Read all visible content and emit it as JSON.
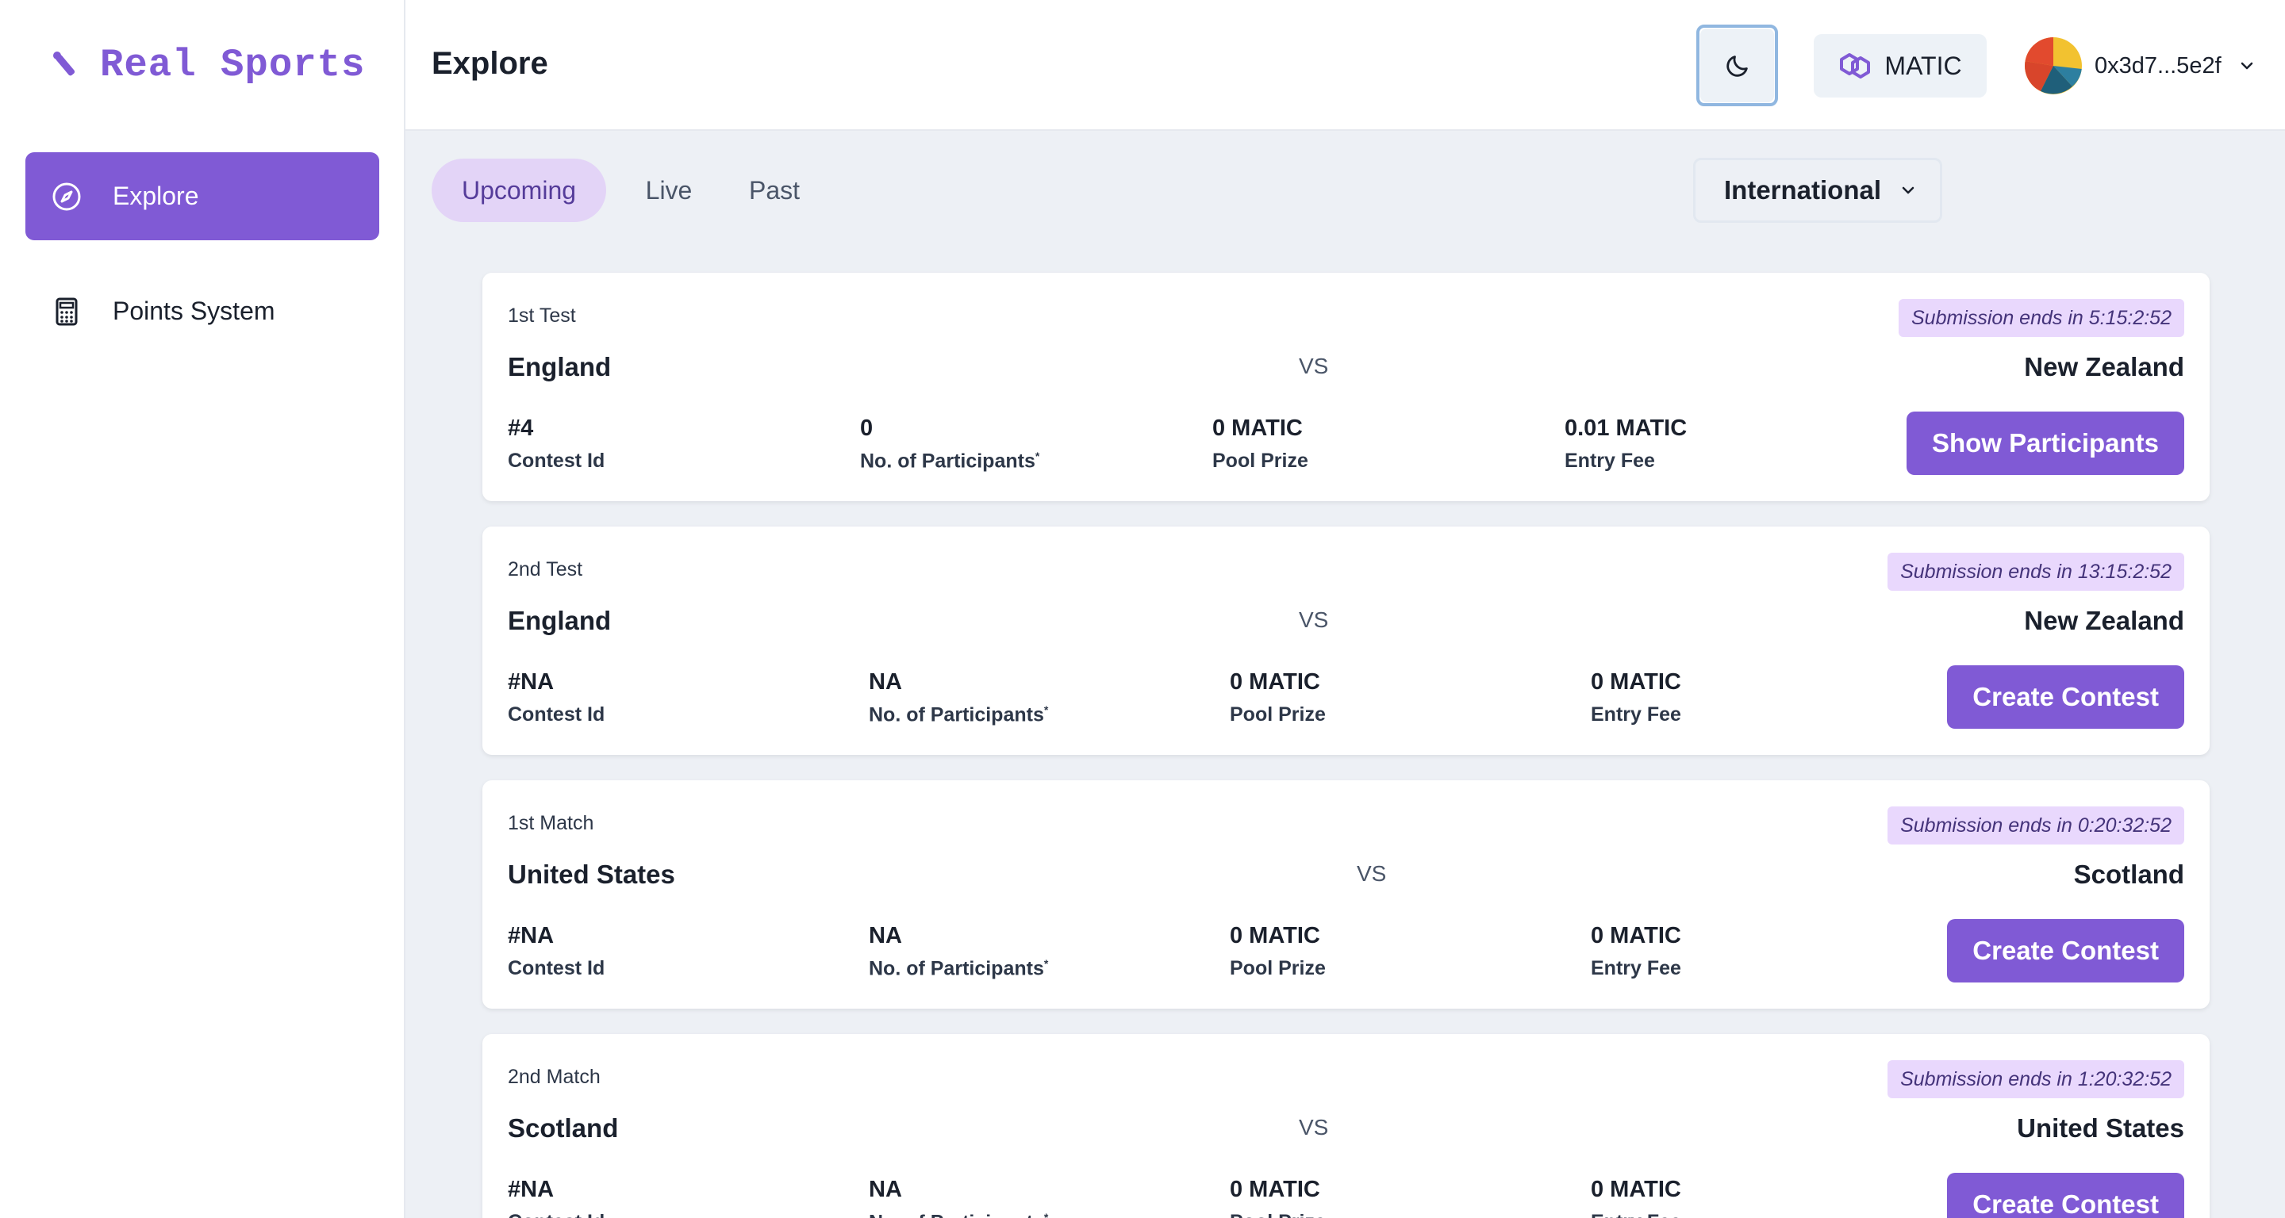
{
  "app": {
    "name": "Real Sports"
  },
  "sidebar": {
    "items": [
      {
        "label": "Explore",
        "icon": "compass-icon",
        "active": true
      },
      {
        "label": "Points System",
        "icon": "calculator-icon",
        "active": false
      }
    ]
  },
  "header": {
    "title": "Explore",
    "theme_icon": "moon-icon",
    "network": {
      "label": "MATIC",
      "icon": "polygon-icon"
    },
    "account": {
      "address": "0x3d7...5e2f",
      "icon": "chevron-down-icon"
    }
  },
  "tabs": [
    {
      "label": "Upcoming",
      "active": true
    },
    {
      "label": "Live",
      "active": false
    },
    {
      "label": "Past",
      "active": false
    }
  ],
  "region": {
    "selected": "International"
  },
  "stat_labels": {
    "contest_id": "Contest Id",
    "participants": "No. of Participants",
    "participants_mark": "*",
    "pool_prize": "Pool Prize",
    "entry_fee": "Entry Fee"
  },
  "vs_label": "VS",
  "contests": [
    {
      "match": "1st Test",
      "submission": "Submission ends in 5:15:2:52",
      "team_a": "England",
      "team_b": "New Zealand",
      "contest_id": "#4",
      "participants": "0",
      "pool_prize": "0 MATIC",
      "entry_fee": "0.01 MATIC",
      "action": "Show Participants"
    },
    {
      "match": "2nd Test",
      "submission": "Submission ends in 13:15:2:52",
      "team_a": "England",
      "team_b": "New Zealand",
      "contest_id": "#NA",
      "participants": "NA",
      "pool_prize": "0 MATIC",
      "entry_fee": "0 MATIC",
      "action": "Create Contest"
    },
    {
      "match": "1st Match",
      "submission": "Submission ends in 0:20:32:52",
      "team_a": "United States",
      "team_b": "Scotland",
      "contest_id": "#NA",
      "participants": "NA",
      "pool_prize": "0 MATIC",
      "entry_fee": "0 MATIC",
      "action": "Create Contest"
    },
    {
      "match": "2nd Match",
      "submission": "Submission ends in 1:20:32:52",
      "team_a": "Scotland",
      "team_b": "United States",
      "contest_id": "#NA",
      "participants": "NA",
      "pool_prize": "0 MATIC",
      "entry_fee": "0 MATIC",
      "action": "Create Contest"
    }
  ],
  "colors": {
    "accent": "#805ad5",
    "badge_bg": "#e9d8fd",
    "main_bg": "#edf0f5"
  }
}
